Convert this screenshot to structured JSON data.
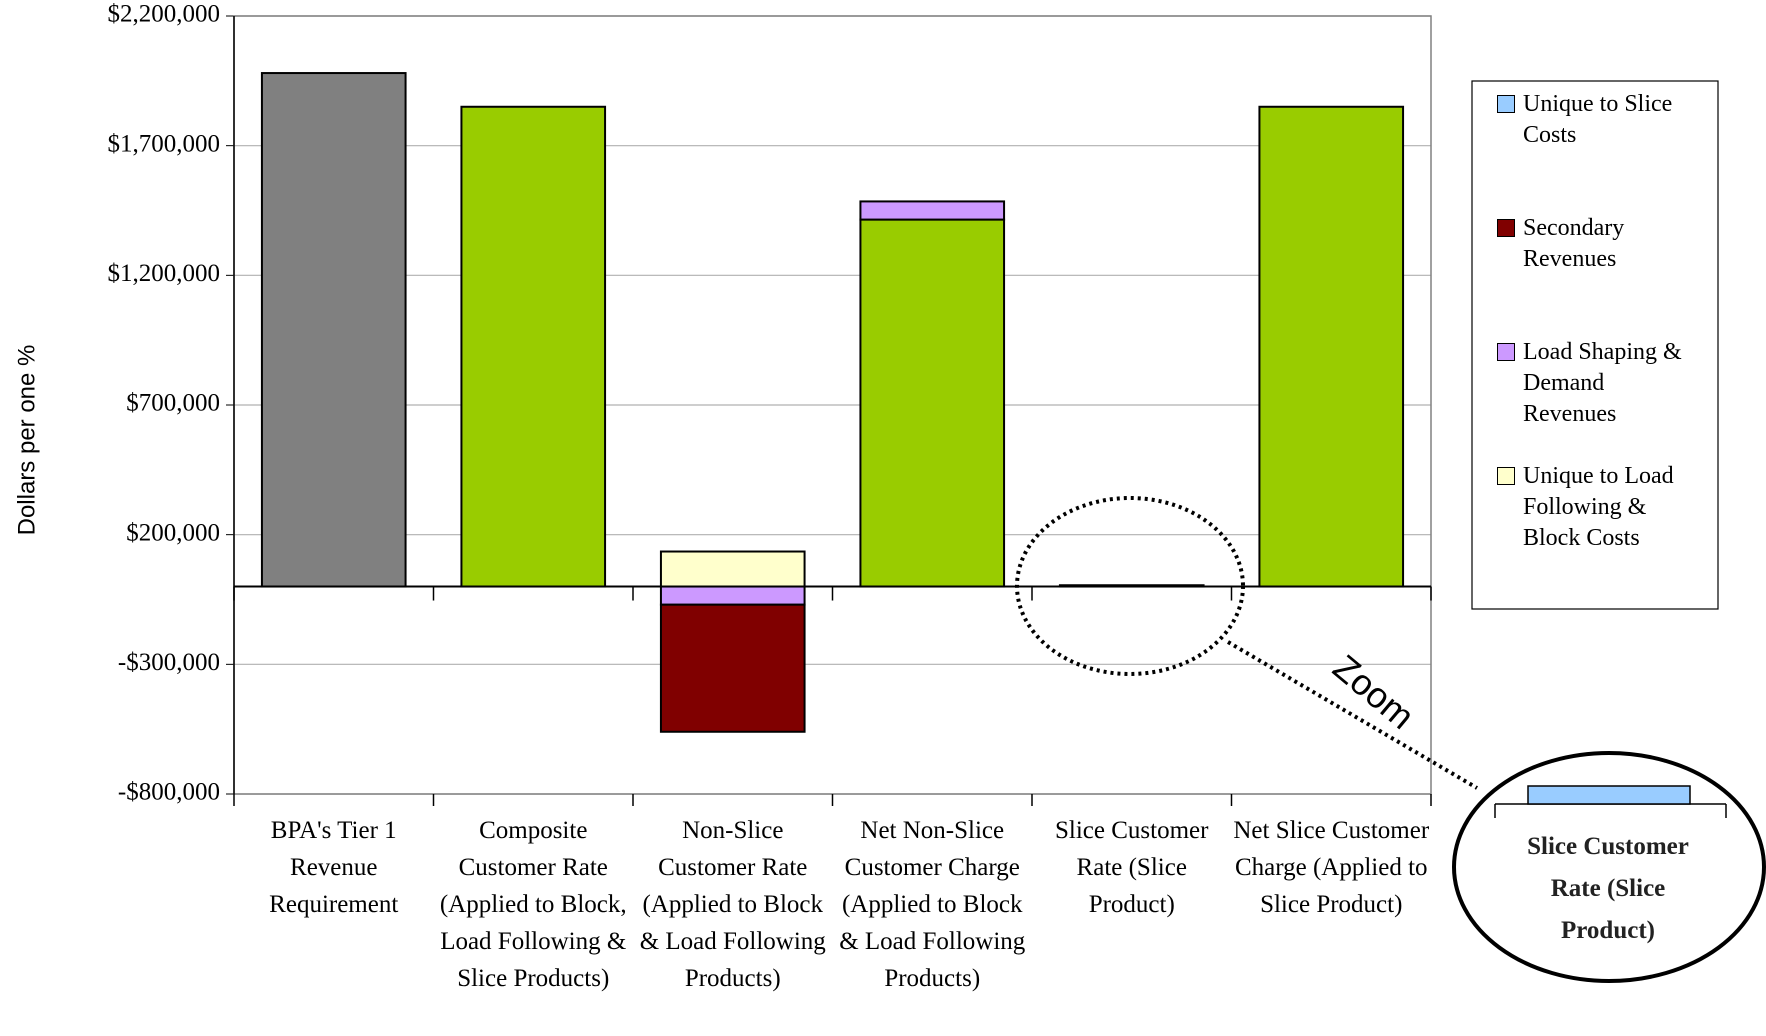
{
  "chart_data": {
    "type": "stacked_bar",
    "y_label": "Dollars per one %",
    "categories": [
      "BPA's Tier 1 Revenue Requirement",
      "Composite Customer Rate (Applied to Block, Load Following & Slice Products)",
      "Non-Slice Customer Rate (Applied to Block & Load Following Products)",
      "Net Non-Slice Customer Charge (Applied to Block & Load Following Products)",
      "Slice Customer Rate (Slice Product)",
      "Net Slice Customer Charge (Applied to Slice Product)"
    ],
    "values": [
      1980000,
      1850000,
      null,
      1415000,
      null,
      1850000
    ],
    "colors": [
      "#808080",
      "#99cc00",
      null,
      "#99cc00",
      null,
      "#99cc00"
    ],
    "series": [
      {
        "name": "Unique to Slice Costs",
        "color": "#99ccff",
        "values": [
          null,
          null,
          null,
          null,
          5000,
          null
        ]
      },
      {
        "name": "Secondary Revenues",
        "color": "#800000",
        "values": [
          null,
          null,
          -490000,
          null,
          null,
          null
        ]
      },
      {
        "name": "Load Shaping & Demand Revenues",
        "color": "#cc99ff",
        "values": [
          null,
          null,
          -70000,
          70000,
          null,
          null
        ]
      },
      {
        "name": "Unique to Load Following & Block Costs",
        "color": "#ffffcc",
        "values": [
          null,
          null,
          135000,
          null,
          null,
          null
        ]
      }
    ],
    "ylim": [
      -800000,
      2200000
    ],
    "yticks": [
      {
        "value": -800000,
        "label": "-$800,000"
      },
      {
        "value": -300000,
        "label": "-$300,000"
      },
      {
        "value": 200000,
        "label": "$200,000"
      },
      {
        "value": 700000,
        "label": "$700,000"
      },
      {
        "value": 1200000,
        "label": "$1,200,000"
      },
      {
        "value": 1700000,
        "label": "$1,700,000"
      },
      {
        "value": 2200000,
        "label": "$2,200,000"
      }
    ],
    "grid": true,
    "legend": "right",
    "annotations": {
      "zoom": "Zoom",
      "inset_label": "Slice Customer Rate (Slice Product)"
    }
  }
}
